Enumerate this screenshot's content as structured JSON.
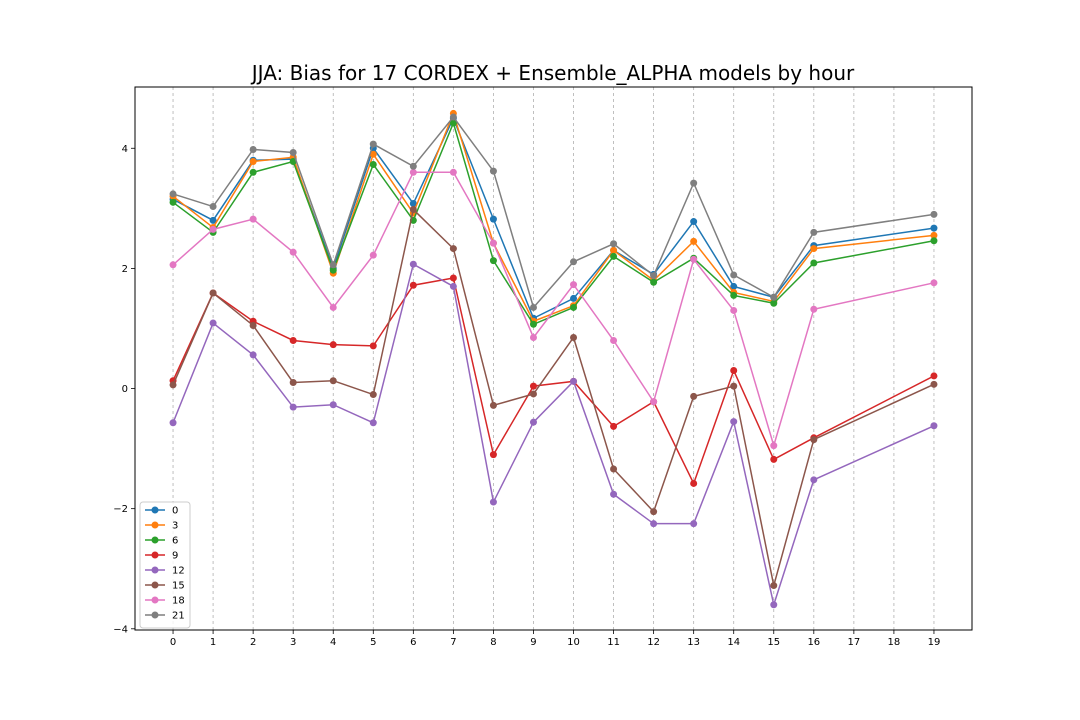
{
  "chart_data": {
    "type": "line",
    "title": "JJA: Bias for 17 CORDEX + Ensemble_ALPHA models by hour",
    "xlabel": "",
    "ylabel": "",
    "x_ticks": [
      0,
      1,
      2,
      3,
      4,
      5,
      6,
      7,
      8,
      9,
      10,
      11,
      12,
      13,
      14,
      15,
      16,
      17,
      18,
      19
    ],
    "y_ticks": [
      -4,
      -2,
      0,
      2,
      4
    ],
    "xlim": [
      -0.95,
      19.95
    ],
    "ylim": [
      -4.02,
      5.02
    ],
    "grid": "x-dashed",
    "legend_placement": "lower-left",
    "x": [
      0,
      1,
      2,
      3,
      4,
      5,
      6,
      7,
      8,
      9,
      10,
      11,
      12,
      13,
      14,
      15,
      16,
      19
    ],
    "series": [
      {
        "name": "0",
        "color": "#1f77b4",
        "values": [
          3.15,
          2.8,
          3.8,
          3.82,
          2.0,
          4.0,
          3.08,
          4.5,
          2.82,
          1.17,
          1.5,
          2.3,
          1.9,
          2.78,
          1.7,
          1.52,
          2.38,
          2.67
        ]
      },
      {
        "name": "3",
        "color": "#ff7f0e",
        "values": [
          3.2,
          2.68,
          3.78,
          3.85,
          1.92,
          3.9,
          2.92,
          4.58,
          2.42,
          1.12,
          1.38,
          2.3,
          1.8,
          2.45,
          1.6,
          1.45,
          2.33,
          2.55
        ]
      },
      {
        "name": "6",
        "color": "#2ca02c",
        "values": [
          3.1,
          2.6,
          3.6,
          3.78,
          1.97,
          3.73,
          2.8,
          4.42,
          2.13,
          1.07,
          1.35,
          2.2,
          1.77,
          2.17,
          1.55,
          1.42,
          2.09,
          2.46
        ]
      },
      {
        "name": "9",
        "color": "#d62728",
        "values": [
          0.13,
          1.59,
          1.12,
          0.8,
          0.73,
          0.71,
          1.72,
          1.84,
          -1.1,
          0.04,
          0.12,
          -0.63,
          -0.22,
          -1.58,
          0.3,
          -1.18,
          -0.82,
          0.21
        ]
      },
      {
        "name": "12",
        "color": "#9467bd",
        "values": [
          -0.57,
          1.09,
          0.56,
          -0.31,
          -0.27,
          -0.57,
          2.07,
          1.7,
          -1.89,
          -0.56,
          0.12,
          -1.76,
          -2.25,
          -2.25,
          -0.55,
          -3.6,
          -1.52,
          -0.62
        ]
      },
      {
        "name": "15",
        "color": "#8c564b",
        "values": [
          0.06,
          1.59,
          1.05,
          0.1,
          0.13,
          -0.1,
          2.98,
          2.33,
          -0.28,
          -0.09,
          0.85,
          -1.34,
          -2.05,
          -0.13,
          0.04,
          -3.28,
          -0.85,
          0.07
        ]
      },
      {
        "name": "18",
        "color": "#e377c2",
        "values": [
          2.06,
          2.65,
          2.82,
          2.27,
          1.35,
          2.22,
          3.6,
          3.6,
          2.42,
          0.85,
          1.73,
          0.8,
          -0.22,
          2.15,
          1.3,
          -0.95,
          1.32,
          1.76
        ]
      },
      {
        "name": "21",
        "color": "#7f7f7f",
        "values": [
          3.24,
          3.03,
          3.98,
          3.93,
          2.06,
          4.07,
          3.7,
          4.52,
          3.62,
          1.35,
          2.11,
          2.41,
          1.88,
          3.42,
          1.89,
          1.52,
          2.6,
          2.9
        ]
      }
    ]
  }
}
